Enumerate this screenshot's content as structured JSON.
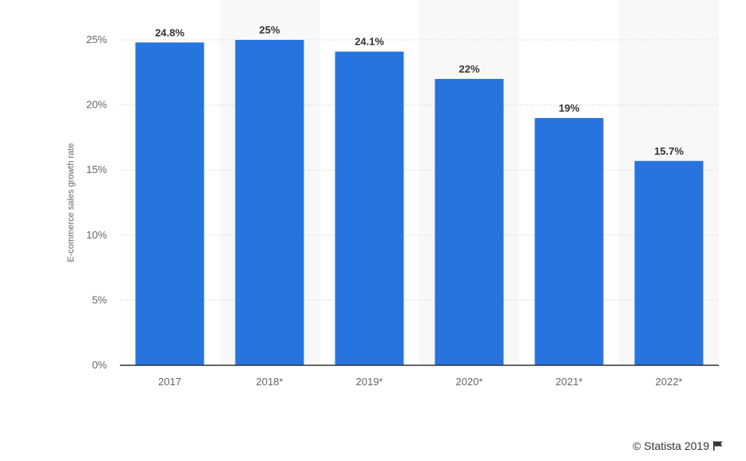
{
  "chart_data": {
    "type": "bar",
    "categories": [
      "2017",
      "2018*",
      "2019*",
      "2020*",
      "2021*",
      "2022*"
    ],
    "values": [
      24.8,
      25,
      24.1,
      22,
      19,
      15.7
    ],
    "data_labels": [
      "24.8%",
      "25%",
      "24.1%",
      "22%",
      "19%",
      "15.7%"
    ],
    "title": "",
    "xlabel": "",
    "ylabel": "E-commerce sales growth rate",
    "ylim": [
      0,
      25
    ],
    "yticks": [
      0,
      5,
      10,
      15,
      20,
      25
    ],
    "ytick_labels": [
      "0%",
      "5%",
      "10%",
      "15%",
      "20%",
      "25%"
    ],
    "grid": true,
    "bar_color": "#2874de",
    "alt_band_color": "#f8f8f8"
  },
  "credit": {
    "text": "© Statista 2019",
    "icon": "flag-icon"
  }
}
